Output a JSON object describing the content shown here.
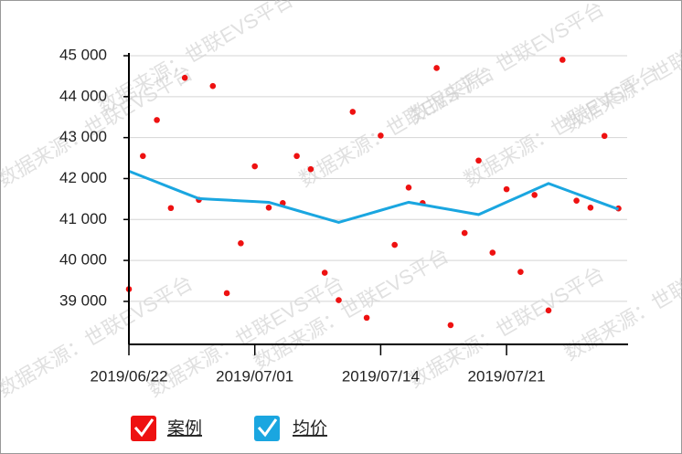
{
  "chart_data": {
    "type": "scatter-line",
    "watermark": "数据来源：世联EVS平台",
    "categories": [
      "2019/06/22",
      null,
      null,
      null,
      null,
      null,
      null,
      null,
      null,
      "2019/07/01",
      null,
      null,
      null,
      null,
      null,
      null,
      null,
      null,
      "2019/07/14",
      null,
      null,
      null,
      null,
      null,
      null,
      null,
      null,
      "2019/07/21",
      null,
      null,
      null,
      null,
      null,
      null,
      null,
      null
    ],
    "series": [
      {
        "name": "案例",
        "color": "#ee1111",
        "type": "scatter",
        "values": [
          39300,
          42550,
          43430,
          41280,
          44460,
          41480,
          44260,
          39200,
          40420,
          42300,
          41290,
          41400,
          42550,
          42230,
          39700,
          39030,
          43630,
          38600,
          43050,
          40380,
          41780,
          41400,
          44700,
          38420,
          40670,
          42440,
          40190,
          41740,
          39720,
          41600,
          38780,
          44900,
          41460,
          41290,
          43040,
          41270
        ]
      },
      {
        "name": "均价",
        "color": "#1aa6e0",
        "type": "line",
        "values": [
          42180,
          42046,
          41912,
          41778,
          41644,
          41510,
          41492,
          41474,
          41456,
          41438,
          41420,
          41322,
          41224,
          41126,
          41028,
          40930,
          41028,
          41126,
          41224,
          41322,
          41420,
          41360,
          41300,
          41240,
          41180,
          41120,
          41272,
          41424,
          41576,
          41728,
          41880,
          41754,
          41628,
          41502,
          41376,
          41250
        ]
      }
    ],
    "ylim": [
      37950,
      45000
    ],
    "yticks": [
      {
        "value": 39000,
        "label": "39 000"
      },
      {
        "value": 40000,
        "label": "40 000"
      },
      {
        "value": 41000,
        "label": "41 000"
      },
      {
        "value": 42000,
        "label": "42 000"
      },
      {
        "value": 43000,
        "label": "43 000"
      },
      {
        "value": 44000,
        "label": "44 000"
      },
      {
        "value": 45000,
        "label": "45 000"
      }
    ],
    "grid": true
  }
}
